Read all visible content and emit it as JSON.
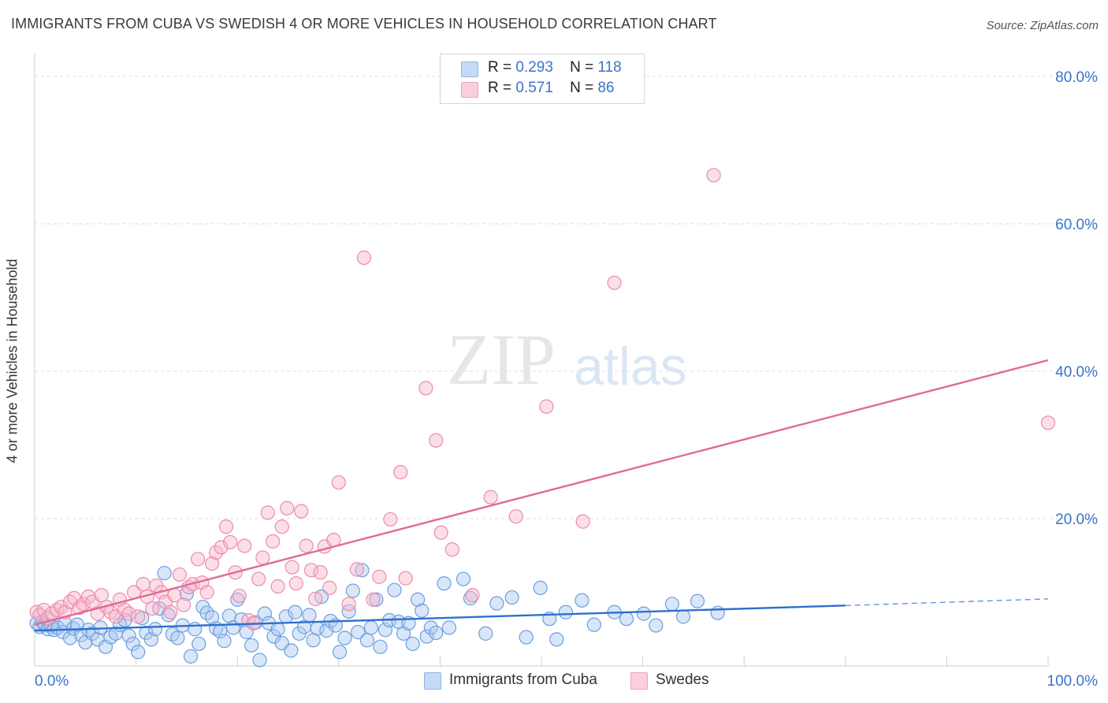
{
  "header": {
    "title": "IMMIGRANTS FROM CUBA VS SWEDISH 4 OR MORE VEHICLES IN HOUSEHOLD CORRELATION CHART",
    "source": "Source: ZipAtlas.com"
  },
  "watermark": {
    "zip": "ZIP",
    "atlas": "atlas"
  },
  "legend": {
    "rows": [
      {
        "r_label": "R =",
        "r_value": "0.293",
        "n_label": "N =",
        "n_value": "118",
        "color": "#aac8f0"
      },
      {
        "r_label": "R =",
        "r_value": "0.571",
        "n_label": "N =",
        "n_value": "86",
        "color": "#f6b8cb"
      }
    ]
  },
  "bottom_legend": {
    "items": [
      {
        "label": "Immigrants from Cuba",
        "color": "#aac8f0"
      },
      {
        "label": "Swedes",
        "color": "#f6b8cb"
      }
    ]
  },
  "chart_data": {
    "type": "scatter",
    "title": "IMMIGRANTS FROM CUBA VS SWEDISH 4 OR MORE VEHICLES IN HOUSEHOLD CORRELATION CHART",
    "xlabel": "",
    "ylabel": "4 or more Vehicles in Household",
    "xlim": [
      0,
      100
    ],
    "ylim": [
      0,
      80
    ],
    "x_tick_labels": [
      "0.0%",
      "100.0%"
    ],
    "y_ticks": [
      20,
      40,
      60,
      80
    ],
    "y_tick_labels": [
      "20.0%",
      "40.0%",
      "60.0%",
      "80.0%"
    ],
    "grid": true,
    "legend_position": "top-center",
    "series": [
      {
        "name": "Immigrants from Cuba",
        "color": "#6a9fe0",
        "fill": "#aac8f0",
        "trend": {
          "x0": 0,
          "y0": 4.8,
          "x1": 80,
          "y1": 8.2,
          "dashed_to_x": 100,
          "dashed_to_y": 9.1,
          "color": "#2f6fd0"
        },
        "points": [
          [
            0.2,
            5.8
          ],
          [
            0.5,
            5.3
          ],
          [
            0.8,
            6.0
          ],
          [
            1.0,
            5.6
          ],
          [
            1.3,
            5.0
          ],
          [
            1.6,
            5.5
          ],
          [
            1.9,
            4.9
          ],
          [
            2.3,
            5.2
          ],
          [
            2.8,
            4.6
          ],
          [
            3.0,
            5.8
          ],
          [
            3.5,
            3.8
          ],
          [
            3.8,
            5.1
          ],
          [
            4.2,
            5.6
          ],
          [
            4.6,
            4.2
          ],
          [
            5.0,
            3.2
          ],
          [
            5.3,
            4.9
          ],
          [
            5.7,
            4.4
          ],
          [
            6.2,
            3.6
          ],
          [
            6.5,
            5.2
          ],
          [
            7.0,
            2.6
          ],
          [
            7.5,
            3.9
          ],
          [
            8.0,
            4.4
          ],
          [
            8.4,
            5.6
          ],
          [
            8.9,
            6.2
          ],
          [
            9.3,
            4.1
          ],
          [
            9.7,
            3.0
          ],
          [
            10.2,
            1.9
          ],
          [
            10.6,
            6.5
          ],
          [
            11.0,
            4.5
          ],
          [
            11.5,
            3.6
          ],
          [
            11.9,
            5.0
          ],
          [
            12.3,
            7.8
          ],
          [
            12.8,
            12.6
          ],
          [
            13.2,
            6.9
          ],
          [
            13.6,
            4.3
          ],
          [
            14.1,
            3.8
          ],
          [
            14.6,
            5.5
          ],
          [
            15.0,
            9.8
          ],
          [
            15.4,
            1.3
          ],
          [
            15.8,
            5.0
          ],
          [
            16.2,
            3.0
          ],
          [
            16.6,
            8.0
          ],
          [
            17.0,
            7.2
          ],
          [
            17.5,
            6.6
          ],
          [
            17.9,
            5.1
          ],
          [
            18.3,
            4.7
          ],
          [
            18.7,
            3.4
          ],
          [
            19.2,
            6.8
          ],
          [
            19.6,
            5.2
          ],
          [
            20.0,
            9.0
          ],
          [
            20.4,
            6.3
          ],
          [
            20.9,
            4.6
          ],
          [
            21.4,
            2.8
          ],
          [
            21.8,
            5.9
          ],
          [
            22.2,
            0.8
          ],
          [
            22.7,
            7.1
          ],
          [
            23.1,
            5.8
          ],
          [
            23.6,
            4.0
          ],
          [
            24.0,
            5.0
          ],
          [
            24.4,
            3.1
          ],
          [
            24.8,
            6.7
          ],
          [
            25.3,
            2.1
          ],
          [
            25.7,
            7.3
          ],
          [
            26.1,
            4.4
          ],
          [
            26.6,
            5.3
          ],
          [
            27.1,
            6.9
          ],
          [
            27.5,
            3.5
          ],
          [
            27.9,
            5.1
          ],
          [
            28.3,
            9.4
          ],
          [
            28.8,
            4.8
          ],
          [
            29.2,
            6.1
          ],
          [
            29.7,
            5.5
          ],
          [
            30.1,
            1.9
          ],
          [
            30.6,
            3.8
          ],
          [
            31.0,
            7.4
          ],
          [
            31.4,
            10.2
          ],
          [
            31.9,
            4.6
          ],
          [
            32.3,
            13.0
          ],
          [
            32.8,
            3.5
          ],
          [
            33.2,
            5.2
          ],
          [
            33.7,
            9.0
          ],
          [
            34.1,
            2.6
          ],
          [
            34.6,
            4.9
          ],
          [
            35.0,
            6.2
          ],
          [
            35.5,
            10.3
          ],
          [
            35.9,
            6.0
          ],
          [
            36.4,
            4.4
          ],
          [
            36.9,
            5.8
          ],
          [
            37.3,
            3.0
          ],
          [
            37.8,
            9.0
          ],
          [
            38.2,
            7.5
          ],
          [
            38.7,
            4.0
          ],
          [
            39.1,
            5.2
          ],
          [
            39.6,
            4.5
          ],
          [
            40.4,
            11.2
          ],
          [
            40.9,
            5.2
          ],
          [
            42.3,
            11.8
          ],
          [
            43.0,
            9.2
          ],
          [
            44.5,
            4.4
          ],
          [
            45.6,
            8.5
          ],
          [
            47.1,
            9.3
          ],
          [
            48.5,
            3.9
          ],
          [
            49.9,
            10.6
          ],
          [
            50.8,
            6.4
          ],
          [
            51.5,
            3.6
          ],
          [
            52.4,
            7.3
          ],
          [
            54.0,
            8.9
          ],
          [
            55.2,
            5.6
          ],
          [
            57.2,
            7.3
          ],
          [
            58.4,
            6.4
          ],
          [
            60.1,
            7.1
          ],
          [
            61.3,
            5.5
          ],
          [
            62.9,
            8.4
          ],
          [
            64.0,
            6.7
          ],
          [
            65.4,
            8.8
          ],
          [
            67.4,
            7.2
          ]
        ]
      },
      {
        "name": "Swedes",
        "color": "#ee8aaa",
        "fill": "#f6b8cb",
        "trend": {
          "x0": 0,
          "y0": 5.6,
          "x1": 100,
          "y1": 41.5,
          "color": "#e06b93"
        },
        "points": [
          [
            0.2,
            7.3
          ],
          [
            0.5,
            6.9
          ],
          [
            0.9,
            7.6
          ],
          [
            1.3,
            6.5
          ],
          [
            1.7,
            7.1
          ],
          [
            2.2,
            7.6
          ],
          [
            2.6,
            8.0
          ],
          [
            3.0,
            7.3
          ],
          [
            3.5,
            8.7
          ],
          [
            3.9,
            9.2
          ],
          [
            4.4,
            7.9
          ],
          [
            4.8,
            8.4
          ],
          [
            5.3,
            9.4
          ],
          [
            5.7,
            8.7
          ],
          [
            6.2,
            7.1
          ],
          [
            6.6,
            9.6
          ],
          [
            7.1,
            8.0
          ],
          [
            7.5,
            7.3
          ],
          [
            8.0,
            6.7
          ],
          [
            8.4,
            9.0
          ],
          [
            8.9,
            7.6
          ],
          [
            9.3,
            7.1
          ],
          [
            9.8,
            10.0
          ],
          [
            10.2,
            6.7
          ],
          [
            10.7,
            11.1
          ],
          [
            11.1,
            9.4
          ],
          [
            11.6,
            7.8
          ],
          [
            12.0,
            10.9
          ],
          [
            12.5,
            10.0
          ],
          [
            12.9,
            8.7
          ],
          [
            13.4,
            7.3
          ],
          [
            13.8,
            9.6
          ],
          [
            14.3,
            12.4
          ],
          [
            14.7,
            8.3
          ],
          [
            15.2,
            10.7
          ],
          [
            15.6,
            11.1
          ],
          [
            16.1,
            14.5
          ],
          [
            16.5,
            11.3
          ],
          [
            17.0,
            10.0
          ],
          [
            17.5,
            13.9
          ],
          [
            17.9,
            15.4
          ],
          [
            18.4,
            16.1
          ],
          [
            18.9,
            18.9
          ],
          [
            19.3,
            16.8
          ],
          [
            19.8,
            12.7
          ],
          [
            20.2,
            9.5
          ],
          [
            20.7,
            16.3
          ],
          [
            21.1,
            6.2
          ],
          [
            21.6,
            5.8
          ],
          [
            22.1,
            11.8
          ],
          [
            22.5,
            14.7
          ],
          [
            23.0,
            20.8
          ],
          [
            23.5,
            16.9
          ],
          [
            24.0,
            10.8
          ],
          [
            24.4,
            18.9
          ],
          [
            24.9,
            21.4
          ],
          [
            25.4,
            13.4
          ],
          [
            25.8,
            11.2
          ],
          [
            26.3,
            21.0
          ],
          [
            26.8,
            16.3
          ],
          [
            27.3,
            13.0
          ],
          [
            27.7,
            9.1
          ],
          [
            28.2,
            12.7
          ],
          [
            28.6,
            16.2
          ],
          [
            29.1,
            10.6
          ],
          [
            29.5,
            17.1
          ],
          [
            30.0,
            24.9
          ],
          [
            31.0,
            8.4
          ],
          [
            31.8,
            13.1
          ],
          [
            32.5,
            55.4
          ],
          [
            33.4,
            9.0
          ],
          [
            34.0,
            12.1
          ],
          [
            35.1,
            19.9
          ],
          [
            36.1,
            26.3
          ],
          [
            36.6,
            11.9
          ],
          [
            38.6,
            37.7
          ],
          [
            39.6,
            30.6
          ],
          [
            40.1,
            18.1
          ],
          [
            41.2,
            15.8
          ],
          [
            43.2,
            9.6
          ],
          [
            45.0,
            22.9
          ],
          [
            47.5,
            20.3
          ],
          [
            50.5,
            35.2
          ],
          [
            54.1,
            19.6
          ],
          [
            57.2,
            52.0
          ],
          [
            67.0,
            66.6
          ],
          [
            100.0,
            33.0
          ]
        ]
      }
    ]
  }
}
